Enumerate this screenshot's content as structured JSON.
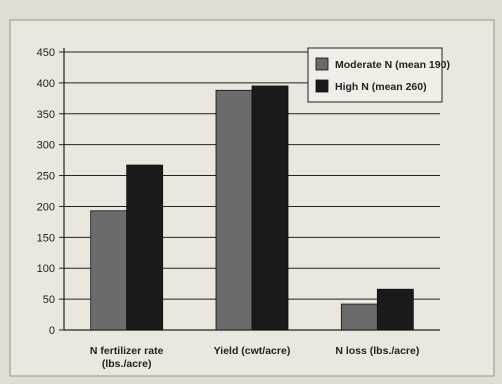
{
  "chart_data": {
    "type": "bar",
    "categories": [
      [
        "N fertilizer rate",
        "(lbs./acre)"
      ],
      [
        "Yield (cwt/acre)"
      ],
      [
        "N loss (lbs./acre)"
      ]
    ],
    "series": [
      {
        "name": "Moderate N (mean 190)",
        "values": [
          193,
          388,
          42
        ],
        "color": "#6b6b6b"
      },
      {
        "name": "High N (mean 260)",
        "values": [
          267,
          395,
          66
        ],
        "color": "#1a1a1a"
      }
    ],
    "yticks": [
      0,
      50,
      100,
      150,
      200,
      250,
      300,
      350,
      400,
      450
    ],
    "ylim": [
      0,
      450
    ],
    "grid": true,
    "legend_position": "top-right",
    "colors": {
      "background": "#e2ddd2",
      "panel": "#ebe7df",
      "gridline": "#222222"
    }
  }
}
